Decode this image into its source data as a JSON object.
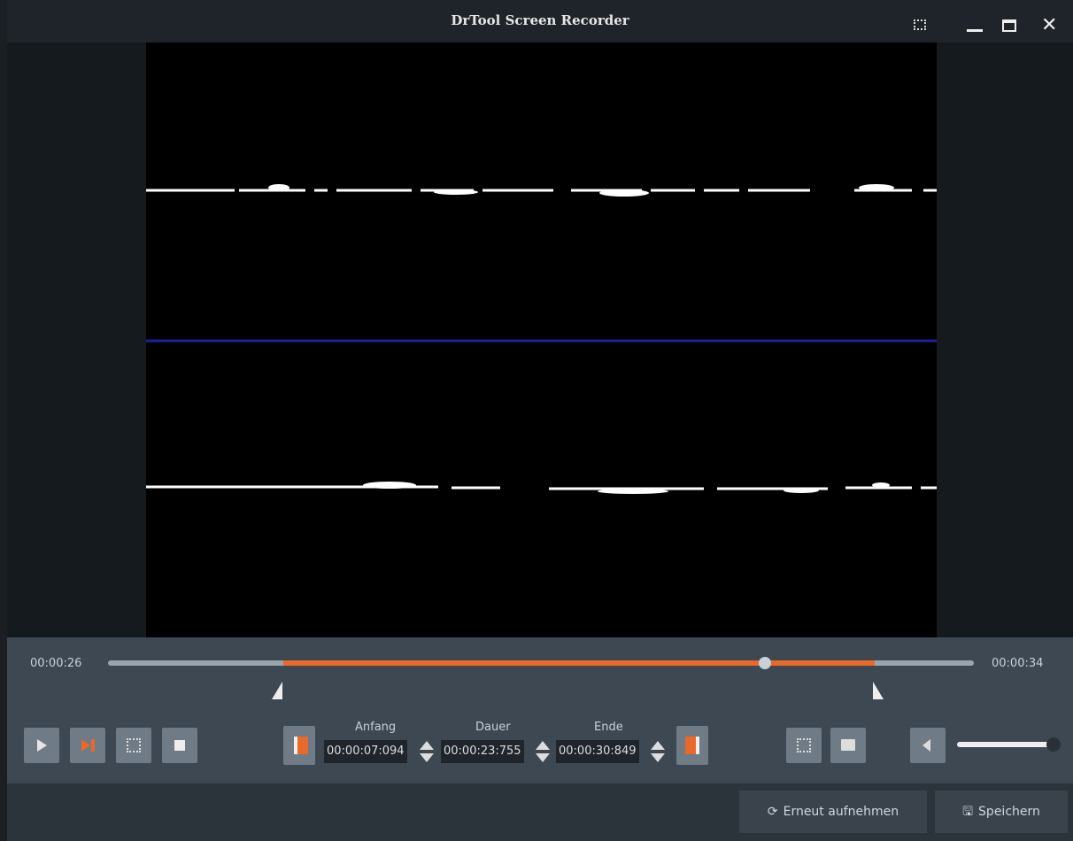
{
  "window": {
    "title": "DrTool Screen Recorder"
  },
  "timeline": {
    "start": "00:00:26",
    "end": "00:00:34"
  },
  "trim": {
    "start_label": "Anfang",
    "start_value": "00:00:07:094",
    "duration_label": "Dauer",
    "duration_value": "00:00:23:755",
    "end_label": "Ende",
    "end_value": "00:00:30:849"
  },
  "actions": {
    "rerecord": "Erneut aufnehmen",
    "save": "Speichern"
  }
}
